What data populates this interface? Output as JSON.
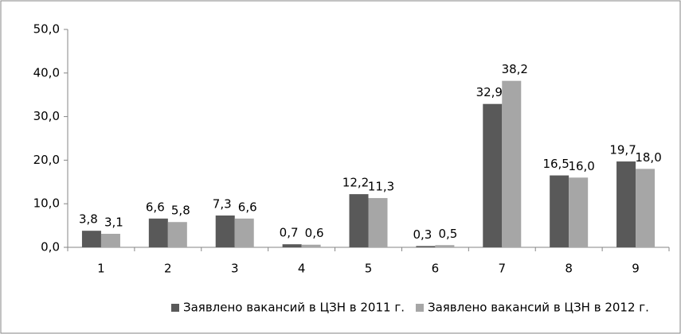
{
  "chart_data": {
    "type": "bar",
    "categories": [
      "1",
      "2",
      "3",
      "4",
      "5",
      "6",
      "7",
      "8",
      "9"
    ],
    "series": [
      {
        "name": "Заявлено вакансий в ЦЗН в 2011 г.",
        "color": "#595959",
        "values": [
          3.8,
          6.6,
          7.3,
          0.7,
          12.2,
          0.3,
          32.9,
          16.5,
          19.7
        ],
        "value_labels": [
          "3,8",
          "6,6",
          "7,3",
          "0,7",
          "12,2",
          "0,3",
          "32,9",
          "16,5",
          "19,7"
        ]
      },
      {
        "name": "Заявлено вакансий в ЦЗН в 2012 г.",
        "color": "#a6a6a6",
        "values": [
          3.1,
          5.8,
          6.6,
          0.6,
          11.3,
          0.5,
          38.2,
          16.0,
          18.0
        ],
        "value_labels": [
          "3,1",
          "5,8",
          "6,6",
          "0,6",
          "11,3",
          "0,5",
          "38,2",
          "16,0",
          "18,0"
        ]
      }
    ],
    "ylim": [
      0,
      50
    ],
    "yticks": [
      {
        "value": 0,
        "label": "0,0"
      },
      {
        "value": 10,
        "label": "10,0"
      },
      {
        "value": 20,
        "label": "20,0"
      },
      {
        "value": 30,
        "label": "30,0"
      },
      {
        "value": 40,
        "label": "40,0"
      },
      {
        "value": 50,
        "label": "50,0"
      }
    ],
    "grid": false,
    "legend": "bottom"
  }
}
